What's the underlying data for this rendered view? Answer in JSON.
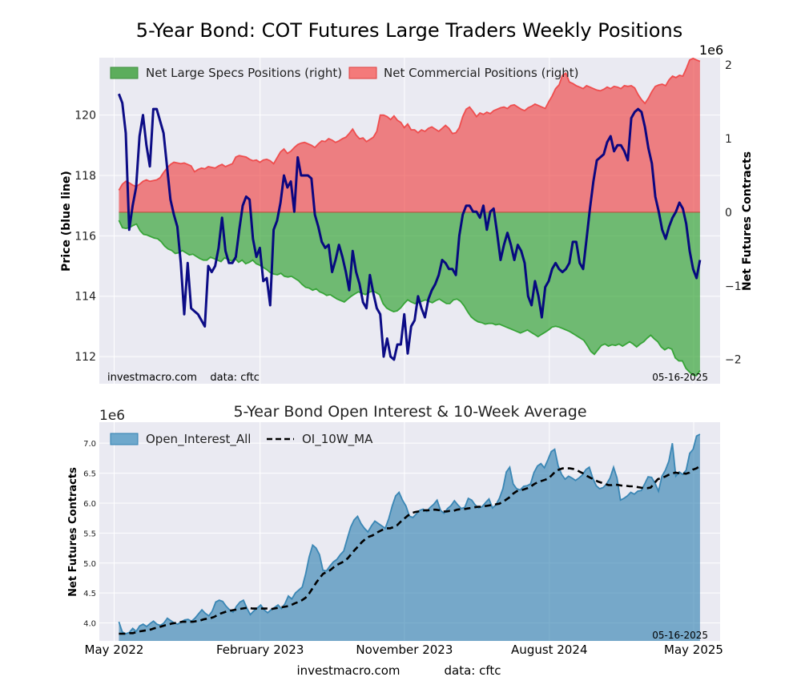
{
  "figure": {
    "title": "5-Year Bond: COT Futures Large Traders Weekly Positions",
    "footer": {
      "source": "investmacro.com",
      "data": "data: cftc"
    }
  },
  "chart_data": [
    {
      "type": "line",
      "title": "5-Year Bond: COT Futures Large Traders Weekly Positions",
      "ylabel": "Price (blue line)",
      "y2label": "Net Futures Contracts",
      "y2_multiplier_label": "1e6",
      "ylim": [
        111.1,
        121.9
      ],
      "y2lim": [
        -2.33,
        2.1
      ],
      "yticks": [
        112,
        114,
        116,
        118,
        120
      ],
      "y2ticks": [
        -2,
        -1,
        0,
        1,
        2
      ],
      "x_start": "2022-05-10",
      "x_end": "2025-05-13",
      "x_axis_range": [
        "2022-04-03",
        "2025-06-20"
      ],
      "grid": true,
      "legend_position": "top-left",
      "annotations": {
        "left": "investmacro.com    data: cftc",
        "right": "05-16-2025"
      },
      "series": [
        {
          "name": "Net Large Specs Positions (right)",
          "kind": "area",
          "axis": "right",
          "color": "#2ca02c",
          "values": [
            -0.11,
            -0.21,
            -0.22,
            -0.21,
            -0.18,
            -0.16,
            -0.25,
            -0.3,
            -0.31,
            -0.33,
            -0.35,
            -0.36,
            -0.4,
            -0.46,
            -0.5,
            -0.52,
            -0.56,
            -0.55,
            -0.52,
            -0.55,
            -0.58,
            -0.57,
            -0.6,
            -0.63,
            -0.65,
            -0.65,
            -0.61,
            -0.63,
            -0.65,
            -0.67,
            -0.62,
            -0.64,
            -0.66,
            -0.63,
            -0.68,
            -0.65,
            -0.7,
            -0.68,
            -0.65,
            -0.7,
            -0.72,
            -0.75,
            -0.78,
            -0.82,
            -0.84,
            -0.85,
            -0.83,
            -0.87,
            -0.88,
            -0.87,
            -0.9,
            -0.93,
            -0.98,
            -1.02,
            -1.03,
            -1.06,
            -1.04,
            -1.08,
            -1.1,
            -1.13,
            -1.12,
            -1.15,
            -1.18,
            -1.2,
            -1.22,
            -1.18,
            -1.14,
            -1.11,
            -1.08,
            -1.1,
            -1.12,
            -1.09,
            -1.07,
            -1.09,
            -1.12,
            -1.24,
            -1.3,
            -1.33,
            -1.35,
            -1.34,
            -1.3,
            -1.24,
            -1.19,
            -1.22,
            -1.24,
            -1.23,
            -1.21,
            -1.19,
            -1.21,
            -1.23,
            -1.2,
            -1.18,
            -1.21,
            -1.24,
            -1.24,
            -1.19,
            -1.18,
            -1.21,
            -1.27,
            -1.35,
            -1.42,
            -1.46,
            -1.49,
            -1.5,
            -1.52,
            -1.51,
            -1.51,
            -1.53,
            -1.52,
            -1.54,
            -1.56,
            -1.58,
            -1.6,
            -1.62,
            -1.64,
            -1.62,
            -1.6,
            -1.63,
            -1.66,
            -1.69,
            -1.66,
            -1.63,
            -1.6,
            -1.56,
            -1.55,
            -1.56,
            -1.58,
            -1.6,
            -1.62,
            -1.65,
            -1.68,
            -1.71,
            -1.74,
            -1.81,
            -1.89,
            -1.93,
            -1.87,
            -1.81,
            -1.79,
            -1.82,
            -1.8,
            -1.81,
            -1.79,
            -1.82,
            -1.79,
            -1.76,
            -1.79,
            -1.83,
            -1.79,
            -1.76,
            -1.71,
            -1.67,
            -1.72,
            -1.76,
            -1.83,
            -1.87,
            -1.84,
            -1.86,
            -1.98,
            -2.02,
            -2.02,
            -2.12,
            -2.17,
            -2.21,
            -2.22,
            -2.15
          ]
        },
        {
          "name": "Net Commercial Positions (right)",
          "kind": "area",
          "axis": "right",
          "color": "#ee4444",
          "values": [
            0.3,
            0.38,
            0.42,
            0.4,
            0.37,
            0.35,
            0.38,
            0.42,
            0.44,
            0.42,
            0.43,
            0.44,
            0.47,
            0.54,
            0.6,
            0.65,
            0.68,
            0.67,
            0.66,
            0.67,
            0.65,
            0.63,
            0.55,
            0.58,
            0.6,
            0.59,
            0.62,
            0.61,
            0.6,
            0.63,
            0.65,
            0.62,
            0.64,
            0.66,
            0.75,
            0.77,
            0.76,
            0.75,
            0.72,
            0.7,
            0.71,
            0.68,
            0.71,
            0.72,
            0.7,
            0.66,
            0.74,
            0.82,
            0.86,
            0.8,
            0.83,
            0.88,
            0.92,
            0.94,
            0.95,
            0.93,
            0.91,
            0.88,
            0.93,
            0.97,
            0.96,
            1.0,
            0.98,
            0.95,
            0.97,
            1.0,
            1.02,
            1.07,
            1.13,
            1.05,
            1.0,
            1.01,
            0.96,
            0.99,
            1.02,
            1.1,
            1.32,
            1.32,
            1.3,
            1.26,
            1.31,
            1.25,
            1.22,
            1.15,
            1.2,
            1.12,
            1.12,
            1.08,
            1.12,
            1.1,
            1.14,
            1.16,
            1.13,
            1.1,
            1.14,
            1.18,
            1.14,
            1.07,
            1.08,
            1.15,
            1.3,
            1.4,
            1.43,
            1.37,
            1.3,
            1.35,
            1.33,
            1.36,
            1.34,
            1.38,
            1.4,
            1.42,
            1.43,
            1.41,
            1.45,
            1.46,
            1.43,
            1.4,
            1.38,
            1.42,
            1.44,
            1.47,
            1.45,
            1.43,
            1.41,
            1.5,
            1.58,
            1.68,
            1.73,
            1.86,
            1.89,
            1.77,
            1.75,
            1.72,
            1.7,
            1.68,
            1.72,
            1.7,
            1.68,
            1.66,
            1.65,
            1.67,
            1.7,
            1.68,
            1.71,
            1.7,
            1.68,
            1.72,
            1.71,
            1.72,
            1.69,
            1.6,
            1.53,
            1.48,
            1.55,
            1.64,
            1.71,
            1.73,
            1.74,
            1.72,
            1.8,
            1.85,
            1.83,
            1.86,
            1.85,
            1.95,
            2.07,
            2.09,
            2.07,
            2.05
          ]
        },
        {
          "name": "Price",
          "kind": "line",
          "axis": "left",
          "color": "#00007f",
          "values": [
            120.7,
            120.4,
            119.4,
            116.2,
            117.0,
            117.6,
            119.3,
            120.0,
            119.0,
            118.3,
            120.2,
            120.2,
            119.8,
            119.4,
            118.3,
            117.2,
            116.7,
            116.3,
            115.1,
            113.4,
            115.1,
            113.6,
            113.5,
            113.4,
            113.2,
            113.0,
            115.0,
            114.8,
            115.0,
            115.6,
            116.6,
            115.5,
            115.1,
            115.1,
            115.3,
            116.2,
            117.0,
            117.3,
            117.2,
            115.9,
            115.3,
            115.6,
            114.5,
            114.6,
            113.7,
            116.2,
            116.5,
            117.1,
            118.0,
            117.6,
            117.8,
            116.8,
            118.6,
            118.0,
            118.0,
            118.0,
            117.9,
            116.7,
            116.3,
            115.8,
            115.6,
            115.7,
            114.8,
            115.2,
            115.7,
            115.3,
            114.8,
            114.2,
            115.5,
            114.8,
            114.4,
            113.8,
            113.6,
            114.7,
            114.1,
            113.6,
            113.4,
            112.0,
            112.6,
            112.0,
            111.9,
            112.4,
            112.4,
            113.4,
            112.1,
            113.0,
            113.2,
            114.0,
            113.6,
            113.3,
            113.9,
            114.2,
            114.4,
            114.7,
            115.2,
            115.1,
            114.9,
            114.9,
            114.7,
            116.0,
            116.7,
            117.0,
            117.0,
            116.8,
            116.8,
            116.6,
            117.0,
            116.2,
            116.8,
            116.9,
            116.1,
            115.2,
            115.7,
            116.1,
            115.7,
            115.2,
            115.7,
            115.5,
            115.1,
            114.0,
            113.7,
            114.5,
            114.0,
            113.3,
            114.3,
            114.5,
            114.9,
            115.1,
            114.9,
            114.8,
            114.9,
            115.1,
            115.8,
            115.8,
            115.1,
            114.9,
            115.9,
            116.9,
            117.8,
            118.5,
            118.6,
            118.7,
            119.1,
            119.3,
            118.8,
            119.0,
            119.0,
            118.8,
            118.5,
            119.9,
            120.1,
            120.2,
            120.1,
            119.6,
            118.9,
            118.4,
            117.3,
            116.8,
            116.2,
            115.9,
            116.3,
            116.6,
            116.8,
            117.1,
            116.9,
            116.4,
            115.5,
            114.9,
            114.6,
            115.2
          ]
        }
      ]
    },
    {
      "type": "area",
      "title": "5-Year Bond Open Interest & 10-Week Average",
      "ylabel": "Net Futures Contracts",
      "y_multiplier_label": "1e6",
      "ylim": [
        3.7,
        7.35
      ],
      "yticks": [
        4.0,
        4.5,
        5.0,
        5.5,
        6.0,
        6.5,
        7.0
      ],
      "ytick_labels": [
        "4.0",
        "4.5",
        "5.0",
        "5.5",
        "6.0",
        "6.5",
        "7.0"
      ],
      "x_start": "2022-05-10",
      "x_end": "2025-05-13",
      "x_axis_range": [
        "2022-04-03",
        "2025-06-20"
      ],
      "xticks": [
        {
          "label": "May 2022",
          "date": "2022-05-01"
        },
        {
          "label": "February 2023",
          "date": "2023-02-01"
        },
        {
          "label": "November 2023",
          "date": "2023-11-01"
        },
        {
          "label": "August 2024",
          "date": "2024-08-01"
        },
        {
          "label": "May 2025",
          "date": "2025-05-01"
        }
      ],
      "grid": true,
      "legend_position": "top-left",
      "annotations": {
        "right": "05-16-2025"
      },
      "series": [
        {
          "name": "Open_Interest_All",
          "kind": "area",
          "color": "#2f7fb0",
          "values": [
            4.02,
            3.85,
            3.82,
            3.84,
            3.91,
            3.86,
            3.95,
            3.98,
            3.94,
            3.99,
            4.03,
            3.98,
            3.96,
            4.0,
            4.08,
            4.04,
            4.0,
            3.98,
            4.02,
            4.05,
            4.06,
            4.03,
            4.08,
            4.15,
            4.22,
            4.16,
            4.12,
            4.2,
            4.35,
            4.38,
            4.36,
            4.28,
            4.22,
            4.18,
            4.28,
            4.35,
            4.38,
            4.25,
            4.14,
            4.2,
            4.25,
            4.3,
            4.22,
            4.17,
            4.22,
            4.26,
            4.3,
            4.24,
            4.32,
            4.45,
            4.4,
            4.5,
            4.55,
            4.6,
            4.82,
            5.1,
            5.3,
            5.25,
            5.14,
            4.88,
            4.87,
            4.95,
            5.02,
            5.06,
            5.14,
            5.2,
            5.4,
            5.6,
            5.72,
            5.78,
            5.66,
            5.58,
            5.52,
            5.62,
            5.7,
            5.66,
            5.62,
            5.58,
            5.74,
            5.95,
            6.12,
            6.18,
            6.05,
            5.95,
            5.78,
            5.76,
            5.82,
            5.88,
            5.9,
            5.86,
            5.93,
            5.98,
            6.05,
            5.88,
            5.83,
            5.91,
            5.96,
            6.04,
            5.97,
            5.91,
            5.93,
            6.08,
            6.05,
            5.97,
            5.92,
            5.94,
            6.01,
            6.07,
            5.92,
            5.97,
            6.08,
            6.24,
            6.52,
            6.6,
            6.32,
            6.24,
            6.22,
            6.28,
            6.29,
            6.32,
            6.51,
            6.62,
            6.66,
            6.59,
            6.72,
            6.86,
            6.9,
            6.62,
            6.48,
            6.4,
            6.45,
            6.42,
            6.38,
            6.42,
            6.47,
            6.56,
            6.6,
            6.42,
            6.29,
            6.24,
            6.26,
            6.32,
            6.42,
            6.6,
            6.42,
            6.05,
            6.08,
            6.12,
            6.18,
            6.15,
            6.2,
            6.21,
            6.32,
            6.44,
            6.43,
            6.33,
            6.2,
            6.45,
            6.55,
            6.7,
            7.0,
            6.45,
            6.52,
            6.48,
            6.55,
            6.83,
            6.9,
            7.12,
            7.15
          ]
        },
        {
          "name": "OI_10W_MA",
          "kind": "line",
          "style": "dashed",
          "color": "#000000",
          "values": [
            3.82,
            3.82,
            3.82,
            3.83,
            3.83,
            3.85,
            3.86,
            3.87,
            3.88,
            3.89,
            3.91,
            3.92,
            3.94,
            3.96,
            3.97,
            3.99,
            4.0,
            4.01,
            4.02,
            4.02,
            4.02,
            4.02,
            4.03,
            4.04,
            4.06,
            4.07,
            4.08,
            4.1,
            4.13,
            4.16,
            4.18,
            4.2,
            4.21,
            4.22,
            4.23,
            4.24,
            4.25,
            4.25,
            4.24,
            4.24,
            4.24,
            4.24,
            4.24,
            4.23,
            4.24,
            4.25,
            4.26,
            4.27,
            4.28,
            4.3,
            4.33,
            4.35,
            4.38,
            4.42,
            4.49,
            4.58,
            4.67,
            4.75,
            4.82,
            4.85,
            4.88,
            4.93,
            4.97,
            5.0,
            5.03,
            5.08,
            5.15,
            5.22,
            5.28,
            5.35,
            5.4,
            5.44,
            5.46,
            5.5,
            5.53,
            5.56,
            5.58,
            5.58,
            5.6,
            5.63,
            5.69,
            5.74,
            5.79,
            5.83,
            5.85,
            5.86,
            5.87,
            5.88,
            5.88,
            5.89,
            5.89,
            5.88,
            5.86,
            5.86,
            5.87,
            5.87,
            5.89,
            5.9,
            5.9,
            5.91,
            5.92,
            5.93,
            5.94,
            5.94,
            5.95,
            5.96,
            5.97,
            5.98,
            5.99,
            6.02,
            6.06,
            6.1,
            6.16,
            6.2,
            6.21,
            6.23,
            6.25,
            6.28,
            6.32,
            6.35,
            6.37,
            6.39,
            6.41,
            6.47,
            6.53,
            6.56,
            6.58,
            6.58,
            6.58,
            6.57,
            6.55,
            6.52,
            6.49,
            6.45,
            6.42,
            6.39,
            6.36,
            6.34,
            6.32,
            6.3,
            6.3,
            6.31,
            6.3,
            6.29,
            6.29,
            6.28,
            6.28,
            6.27,
            6.26,
            6.25,
            6.25,
            6.26,
            6.33,
            6.4,
            6.42,
            6.44,
            6.47,
            6.49,
            6.51,
            6.5,
            6.5,
            6.49,
            6.51,
            6.56,
            6.58,
            6.62
          ]
        }
      ]
    }
  ]
}
